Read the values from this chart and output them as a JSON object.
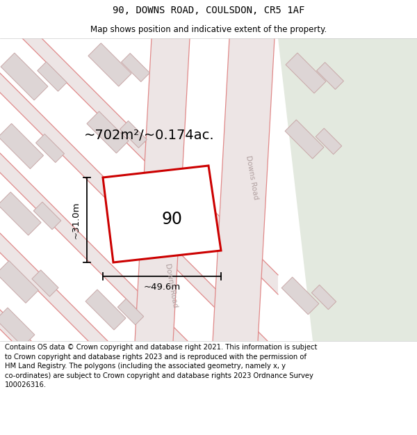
{
  "title": "90, DOWNS ROAD, COULSDON, CR5 1AF",
  "subtitle": "Map shows position and indicative extent of the property.",
  "footer_lines": "Contains OS data © Crown copyright and database right 2021. This information is subject\nto Crown copyright and database rights 2023 and is reproduced with the permission of\nHM Land Registry. The polygons (including the associated geometry, namely x, y\nco-ordinates) are subject to Crown copyright and database rights 2023 Ordnance Survey\n100026316.",
  "area_label": "~702m²/~0.174ac.",
  "width_label": "~49.6m",
  "height_label": "~31.0m",
  "property_number": "90",
  "map_bg": "#f2ecec",
  "green_color": "#e3e9df",
  "road_fill": "#ede5e5",
  "road_line": "#e08888",
  "building_fill": "#ddd5d5",
  "building_edge": "#c8a8a8",
  "prop_edge": "#cc0000",
  "prop_fill": "#ffffff",
  "title_fontsize": 10,
  "subtitle_fontsize": 8.5,
  "footer_fontsize": 7.2,
  "area_fontsize": 14,
  "dim_fontsize": 9.5,
  "num_fontsize": 17,
  "road_label_fontsize": 7.5
}
